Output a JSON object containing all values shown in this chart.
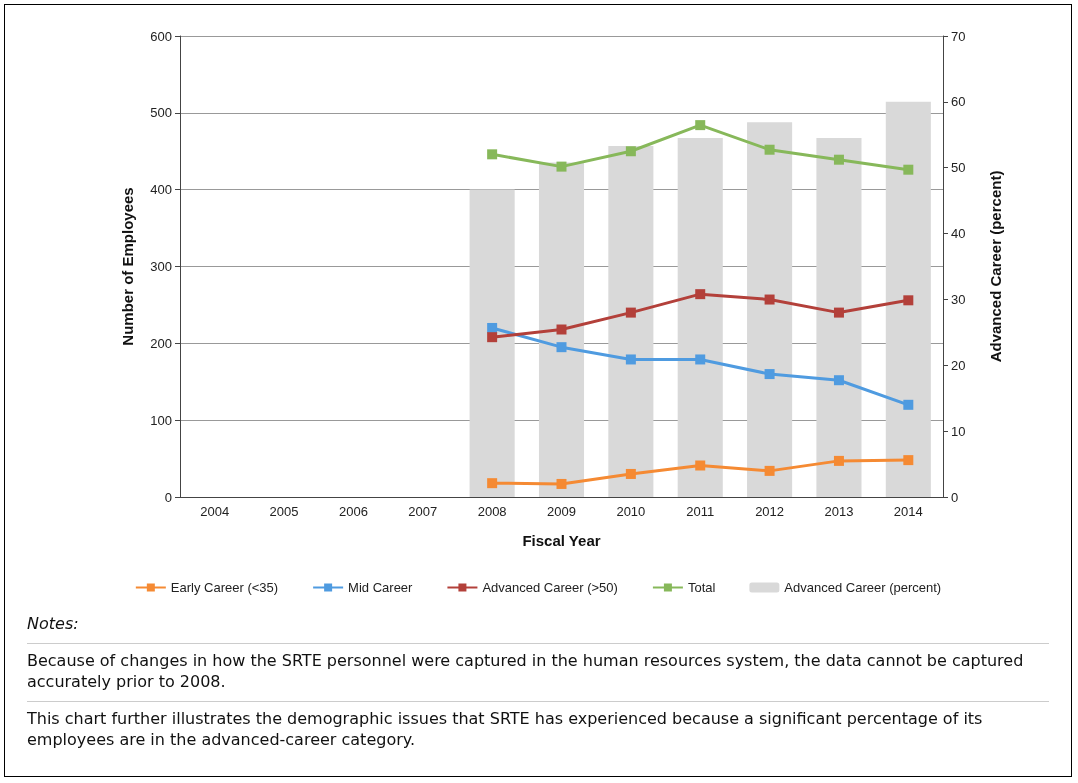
{
  "chart_data": {
    "type": "line",
    "xlabel": "Fiscal Year",
    "ylabel": "Number of Employees",
    "y2label": "Advanced Career (percent)",
    "categories": [
      "2004",
      "2005",
      "2006",
      "2007",
      "2008",
      "2009",
      "2010",
      "2011",
      "2012",
      "2013",
      "2014"
    ],
    "series": [
      {
        "name": "Early Career (<35)",
        "color": "#f58a33",
        "values": [
          null,
          null,
          null,
          null,
          18,
          17,
          30,
          41,
          34,
          47,
          48
        ]
      },
      {
        "name": "Mid Career",
        "color": "#4f9be0",
        "values": [
          null,
          null,
          null,
          null,
          220,
          195,
          179,
          179,
          160,
          152,
          120
        ]
      },
      {
        "name": "Advanced Career (>50)",
        "color": "#b3403a",
        "values": [
          null,
          null,
          null,
          null,
          208,
          218,
          240,
          264,
          257,
          240,
          256
        ]
      },
      {
        "name": "Total",
        "color": "#87b85a",
        "values": [
          null,
          null,
          null,
          null,
          446,
          430,
          450,
          484,
          452,
          439,
          426
        ]
      },
      {
        "name": "Advanced Career (percent)",
        "type": "bar",
        "axis": "y2",
        "color": "#d9d9d9",
        "values": [
          null,
          null,
          null,
          null,
          46.7,
          50.8,
          53.3,
          54.5,
          56.9,
          54.5,
          60
        ]
      }
    ],
    "ylim": [
      0,
      600
    ],
    "yticks": [
      0,
      100,
      200,
      300,
      400,
      500,
      600
    ],
    "y2lim": [
      0,
      70
    ],
    "y2ticks": [
      0,
      10,
      20,
      30,
      40,
      50,
      60,
      70
    ],
    "grid": "y",
    "legend": "bottom",
    "marker": "square",
    "line_style": "solid",
    "annotations": [
      "Notes:",
      "Because of changes in how the SRTE personnel were captured in the human resources system, the data cannot be captured accurately prior to 2008.",
      "This chart further illustrates the demographic issues that SRTE has experienced because a significant percentage of its employees are in the advanced-career category."
    ]
  }
}
